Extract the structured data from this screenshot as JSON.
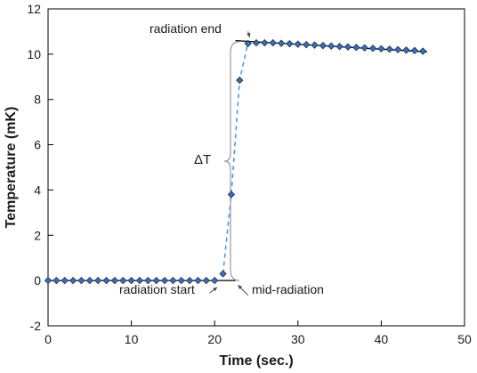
{
  "chart_data": {
    "type": "scatter",
    "xlabel": "Time (sec.)",
    "ylabel": "Temperature (mK)",
    "xlim": [
      0,
      50
    ],
    "ylim": [
      -2,
      12
    ],
    "xticks": [
      0,
      10,
      20,
      30,
      40,
      50
    ],
    "yticks": [
      -2,
      0,
      2,
      4,
      6,
      8,
      10,
      12
    ],
    "grid": false,
    "colors": {
      "marker_fill": "#3a6fb0",
      "marker_stroke": "#1c2f55",
      "fit_line": "#5b9bd5",
      "baseline": "#000000",
      "annotation": "#444444"
    },
    "series": [
      {
        "marker": "diamond",
        "x": [
          0,
          1,
          2,
          3,
          4,
          5,
          6,
          7,
          8,
          9,
          10,
          11,
          12,
          13,
          14,
          15,
          16,
          17,
          18,
          19,
          20,
          21,
          22,
          23,
          24,
          25,
          26,
          27,
          28,
          29,
          30,
          31,
          32,
          33,
          34,
          35,
          36,
          37,
          38,
          39,
          40,
          41,
          42,
          43,
          44,
          45
        ],
        "y": [
          0,
          0,
          0,
          0,
          0,
          0,
          0,
          0,
          0,
          0,
          0,
          0,
          0,
          0,
          0,
          0,
          0,
          0,
          0,
          0,
          0,
          0.3,
          3.8,
          8.85,
          10.47,
          10.5,
          10.5,
          10.5,
          10.48,
          10.46,
          10.44,
          10.42,
          10.4,
          10.38,
          10.36,
          10.34,
          10.32,
          10.3,
          10.28,
          10.26,
          10.24,
          10.22,
          10.2,
          10.18,
          10.16,
          10.13
        ]
      }
    ],
    "fit_lines": {
      "pre": {
        "x": [
          0,
          22.5
        ],
        "y": [
          0,
          0
        ]
      },
      "post": {
        "x": [
          22.5,
          45.5
        ],
        "y": [
          10.6,
          10.1
        ]
      },
      "rise": {
        "x": [
          21,
          22,
          23,
          24
        ],
        "y": [
          0.3,
          3.8,
          8.85,
          10.5
        ]
      }
    },
    "annotations": {
      "radiation_end": "radiation end",
      "radiation_start": "radiation start",
      "mid_radiation": "mid-radiation",
      "delta_t": "ΔT"
    }
  }
}
